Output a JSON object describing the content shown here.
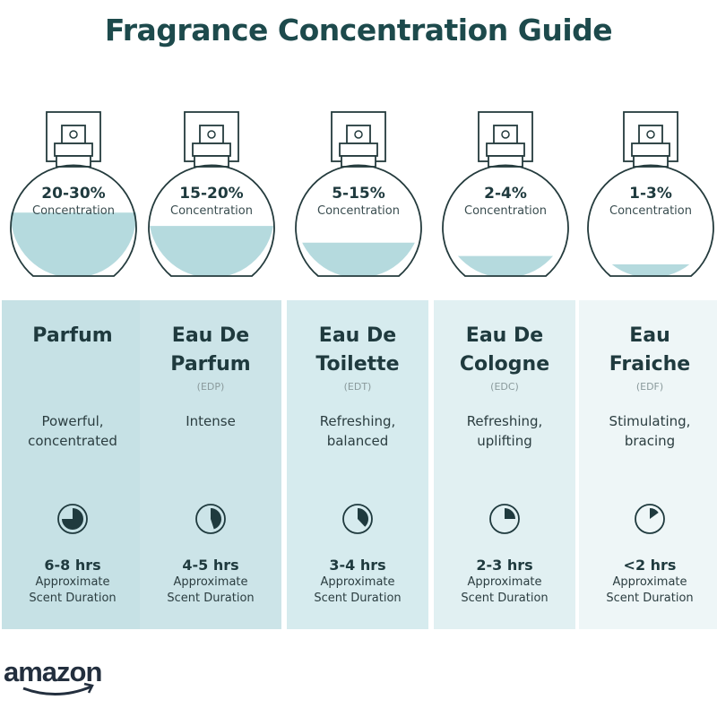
{
  "title": "Fragrance Concentration Guide",
  "concentration_label": "Concentration",
  "duration_label_1": "Approximate",
  "duration_label_2": "Scent Duration",
  "colors": {
    "title": "#1d4a4c",
    "liquid": "#b5dade",
    "panel_dark": "#c4e0e4",
    "panel_light": "#eef6f7",
    "outline": "#243b3d"
  },
  "types": [
    {
      "pct": "20-30%",
      "name1": "Parfum",
      "name2": "",
      "abbr": "",
      "desc1": "Powerful,",
      "desc2": "concentrated",
      "hrs": "6-8 hrs",
      "fill": 0.38,
      "clock": 0.75
    },
    {
      "pct": "15-20%",
      "name1": "Eau De",
      "name2": "Parfum",
      "abbr": "(EDP)",
      "desc1": "Intense",
      "desc2": "",
      "hrs": "4-5 hrs",
      "fill": 0.3,
      "clock": 0.45
    },
    {
      "pct": "5-15%",
      "name1": "Eau De",
      "name2": "Toilette",
      "abbr": "(EDT)",
      "desc1": "Refreshing,",
      "desc2": "balanced",
      "hrs": "3-4 hrs",
      "fill": 0.2,
      "clock": 0.38
    },
    {
      "pct": "2-4%",
      "name1": "Eau De",
      "name2": "Cologne",
      "abbr": "(EDC)",
      "desc1": "Refreshing,",
      "desc2": "uplifting",
      "hrs": "2-3 hrs",
      "fill": 0.12,
      "clock": 0.25
    },
    {
      "pct": "1-3%",
      "name1": "Eau",
      "name2": "Fraiche",
      "abbr": "(EDF)",
      "desc1": "Stimulating,",
      "desc2": "bracing",
      "hrs": "<2 hrs",
      "fill": 0.07,
      "clock": 0.15
    }
  ],
  "logo": "amazon"
}
